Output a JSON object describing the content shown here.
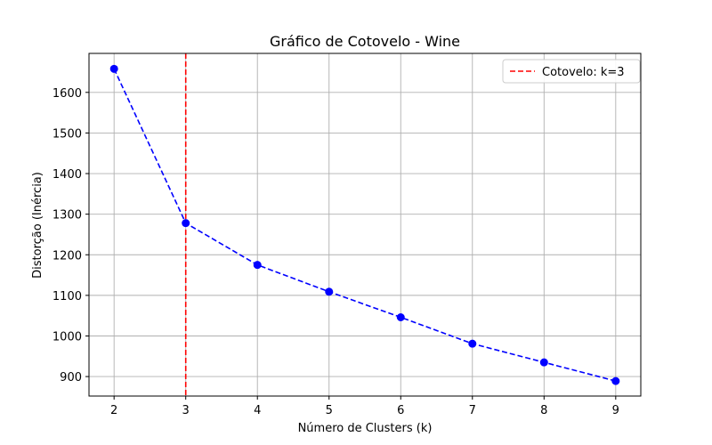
{
  "chart_data": {
    "type": "line",
    "title": "Gráfico de Cotovelo - Wine",
    "xlabel": "Número de Clusters (k)",
    "ylabel": "Distorção (Inércia)",
    "x": [
      2,
      3,
      4,
      5,
      6,
      7,
      8,
      9
    ],
    "series": [
      {
        "values": [
          1658,
          1278,
          1175,
          1109,
          1046,
          981,
          935,
          889
        ],
        "color": "#0000ff",
        "line_style": "dashed",
        "marker": "circle"
      }
    ],
    "xticks": [
      2,
      3,
      4,
      5,
      6,
      7,
      8,
      9
    ],
    "yticks": [
      900,
      1000,
      1100,
      1200,
      1300,
      1400,
      1500,
      1600
    ],
    "xlim": [
      1.65,
      9.35
    ],
    "ylim": [
      852,
      1696
    ],
    "grid": true,
    "vline": {
      "x": 3,
      "label": "Cotovelo: k=3",
      "color": "#ff0000",
      "line_style": "dashed"
    },
    "legend": {
      "placement": "top-right",
      "entries": [
        "Cotovelo: k=3"
      ]
    }
  }
}
